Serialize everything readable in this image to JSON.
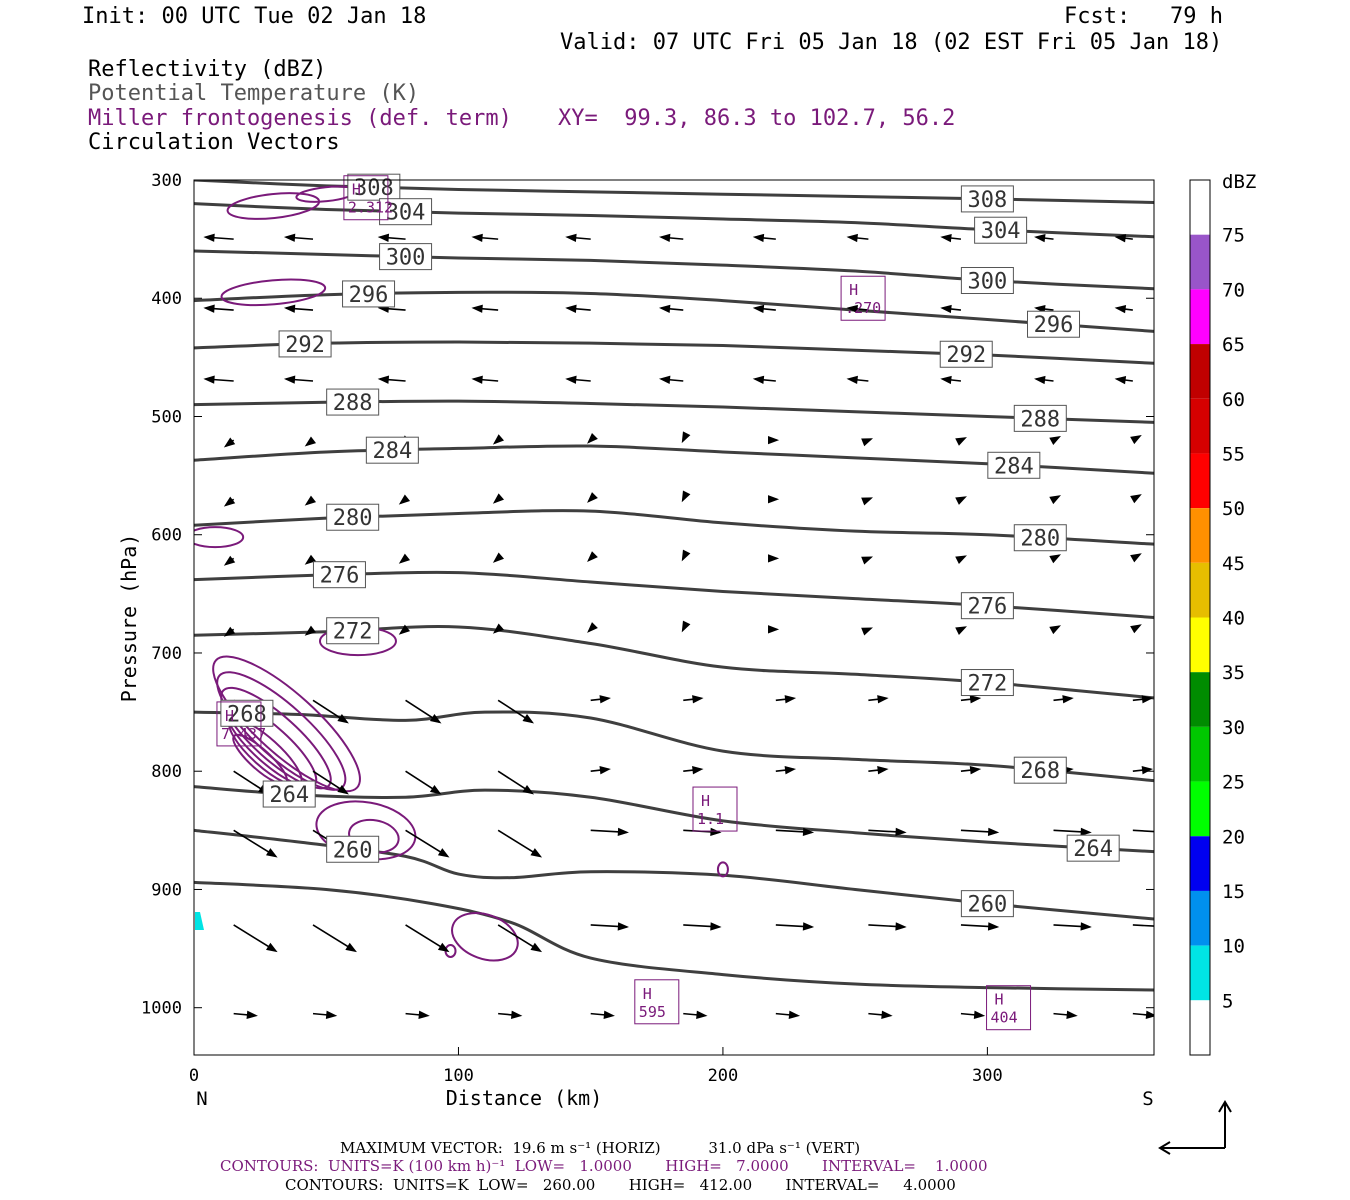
{
  "header": {
    "init": "Init: 00 UTC Tue 02 Jan 18",
    "fcst": "Fcst:   79 h",
    "valid": "Valid: 07 UTC Fri 05 Jan 18 (02 EST Fri 05 Jan 18)"
  },
  "fields": {
    "reflectivity": "Reflectivity (dBZ)",
    "theta": "Potential Temperature (K)",
    "frontogenesis": "Miller frontogenesis (def. term)",
    "vectors": "Circulation Vectors",
    "xy": "XY=  99.3, 86.3 to 102.7, 56.2"
  },
  "footer": {
    "max_vector": "MAXIMUM VECTOR:  19.6 m s⁻¹ (HORIZ)          31.0 dPa s⁻¹ (VERT)",
    "contours_fronto": "CONTOURS:  UNITS=K (100 km h)⁻¹  LOW=   1.0000       HIGH=   7.0000       INTERVAL=    1.0000",
    "contours_theta": "CONTOURS:  UNITS=K  LOW=   260.00       HIGH=   412.00       INTERVAL=     4.0000"
  },
  "colors": {
    "theta": "#3f3f3f",
    "fronto": "#7a1a7a",
    "vector": "#000000"
  },
  "chart_data": {
    "type": "cross-section",
    "xlabel": "Distance (km)",
    "ylabel": "Pressure (hPa)",
    "xlim": [
      0,
      363
    ],
    "ylim": [
      1040,
      300
    ],
    "x_ticks": [
      0,
      100,
      200,
      300
    ],
    "y_ticks": [
      300,
      400,
      500,
      600,
      700,
      800,
      900,
      1000
    ],
    "left_end_label": "N",
    "right_end_label": "S",
    "colorbar": {
      "label": "dBZ",
      "ticks": [
        "5",
        "10",
        "15",
        "20",
        "25",
        "30",
        "35",
        "40",
        "45",
        "50",
        "55",
        "60",
        "65",
        "70",
        "75"
      ],
      "colors": [
        "#ffffff",
        "#00e4e4",
        "#0090ee",
        "#0000f0",
        "#00ff00",
        "#00c800",
        "#008c00",
        "#ffff00",
        "#e6be00",
        "#ff9000",
        "#ff0000",
        "#d60000",
        "#c00000",
        "#ff00ff",
        "#9955c9",
        "#ffffff"
      ]
    },
    "theta_contours": [
      {
        "level": 308,
        "label": "308",
        "points": [
          [
            0,
            300
          ],
          [
            50,
            305
          ],
          [
            100,
            308
          ],
          [
            150,
            310
          ],
          [
            200,
            312
          ],
          [
            250,
            314
          ],
          [
            300,
            316
          ],
          [
            363,
            319
          ]
        ]
      },
      {
        "level": 304,
        "label": "304",
        "points": [
          [
            0,
            320
          ],
          [
            50,
            325
          ],
          [
            100,
            328
          ],
          [
            150,
            330
          ],
          [
            200,
            333
          ],
          [
            250,
            336
          ],
          [
            300,
            342
          ],
          [
            363,
            348
          ]
        ]
      },
      {
        "level": 300,
        "label": "300",
        "points": [
          [
            0,
            360
          ],
          [
            50,
            363
          ],
          [
            100,
            366
          ],
          [
            150,
            368
          ],
          [
            200,
            372
          ],
          [
            250,
            377
          ],
          [
            300,
            385
          ],
          [
            363,
            392
          ]
        ]
      },
      {
        "level": 296,
        "label": "296",
        "points": [
          [
            0,
            402
          ],
          [
            50,
            397
          ],
          [
            100,
            395
          ],
          [
            150,
            396
          ],
          [
            200,
            402
          ],
          [
            250,
            410
          ],
          [
            300,
            418
          ],
          [
            363,
            428
          ]
        ]
      },
      {
        "level": 292,
        "label": "292",
        "points": [
          [
            0,
            442
          ],
          [
            50,
            438
          ],
          [
            100,
            437
          ],
          [
            150,
            438
          ],
          [
            200,
            440
          ],
          [
            250,
            444
          ],
          [
            300,
            448
          ],
          [
            363,
            455
          ]
        ]
      },
      {
        "level": 288,
        "label": "288",
        "points": [
          [
            0,
            490
          ],
          [
            50,
            488
          ],
          [
            100,
            487
          ],
          [
            150,
            489
          ],
          [
            200,
            492
          ],
          [
            250,
            496
          ],
          [
            300,
            500
          ],
          [
            363,
            505
          ]
        ]
      },
      {
        "level": 284,
        "label": "284",
        "points": [
          [
            0,
            537
          ],
          [
            50,
            530
          ],
          [
            100,
            527
          ],
          [
            150,
            525
          ],
          [
            200,
            530
          ],
          [
            250,
            535
          ],
          [
            300,
            540
          ],
          [
            363,
            548
          ]
        ]
      },
      {
        "level": 280,
        "label": "280",
        "points": [
          [
            0,
            592
          ],
          [
            50,
            586
          ],
          [
            100,
            582
          ],
          [
            150,
            580
          ],
          [
            200,
            590
          ],
          [
            250,
            597
          ],
          [
            300,
            600
          ],
          [
            363,
            608
          ]
        ]
      },
      {
        "level": 276,
        "label": "276",
        "points": [
          [
            0,
            638
          ],
          [
            50,
            634
          ],
          [
            100,
            632
          ],
          [
            150,
            640
          ],
          [
            200,
            648
          ],
          [
            250,
            654
          ],
          [
            300,
            660
          ],
          [
            363,
            670
          ]
        ]
      },
      {
        "level": 272,
        "label": "272",
        "points": [
          [
            0,
            685
          ],
          [
            50,
            682
          ],
          [
            100,
            678
          ],
          [
            150,
            692
          ],
          [
            200,
            712
          ],
          [
            250,
            718
          ],
          [
            300,
            725
          ],
          [
            363,
            738
          ]
        ]
      },
      {
        "level": 268,
        "label": "268",
        "points": [
          [
            0,
            750
          ],
          [
            40,
            752
          ],
          [
            80,
            757
          ],
          [
            110,
            750
          ],
          [
            150,
            755
          ],
          [
            200,
            783
          ],
          [
            250,
            790
          ],
          [
            300,
            795
          ],
          [
            363,
            808
          ]
        ]
      },
      {
        "level": 264,
        "label": "264",
        "points": [
          [
            0,
            813
          ],
          [
            40,
            820
          ],
          [
            80,
            822
          ],
          [
            110,
            816
          ],
          [
            150,
            822
          ],
          [
            200,
            842
          ],
          [
            250,
            852
          ],
          [
            300,
            860
          ],
          [
            363,
            868
          ]
        ]
      },
      {
        "level": 260,
        "label": "260",
        "points": [
          [
            0,
            850
          ],
          [
            40,
            860
          ],
          [
            80,
            872
          ],
          [
            100,
            887
          ],
          [
            120,
            890
          ],
          [
            150,
            885
          ],
          [
            200,
            888
          ],
          [
            250,
            900
          ],
          [
            300,
            912
          ],
          [
            363,
            925
          ]
        ]
      },
      {
        "level": 256,
        "label": "",
        "points": [
          [
            0,
            894
          ],
          [
            50,
            900
          ],
          [
            90,
            912
          ],
          [
            120,
            928
          ],
          [
            150,
            958
          ],
          [
            200,
            972
          ],
          [
            250,
            980
          ],
          [
            300,
            983
          ],
          [
            363,
            985
          ]
        ]
      }
    ],
    "frontogenesis_maxima": [
      {
        "label": "2.312",
        "x": 65,
        "p": 315
      },
      {
        "label": ".270",
        "x": 253,
        "p": 400
      },
      {
        "label": "7.437",
        "x": 17,
        "p": 760
      },
      {
        "label": "1.1",
        "x": 197,
        "p": 832
      },
      {
        "label": "595",
        "x": 175,
        "p": 995
      },
      {
        "label": "404",
        "x": 308,
        "p": 1000
      }
    ]
  }
}
